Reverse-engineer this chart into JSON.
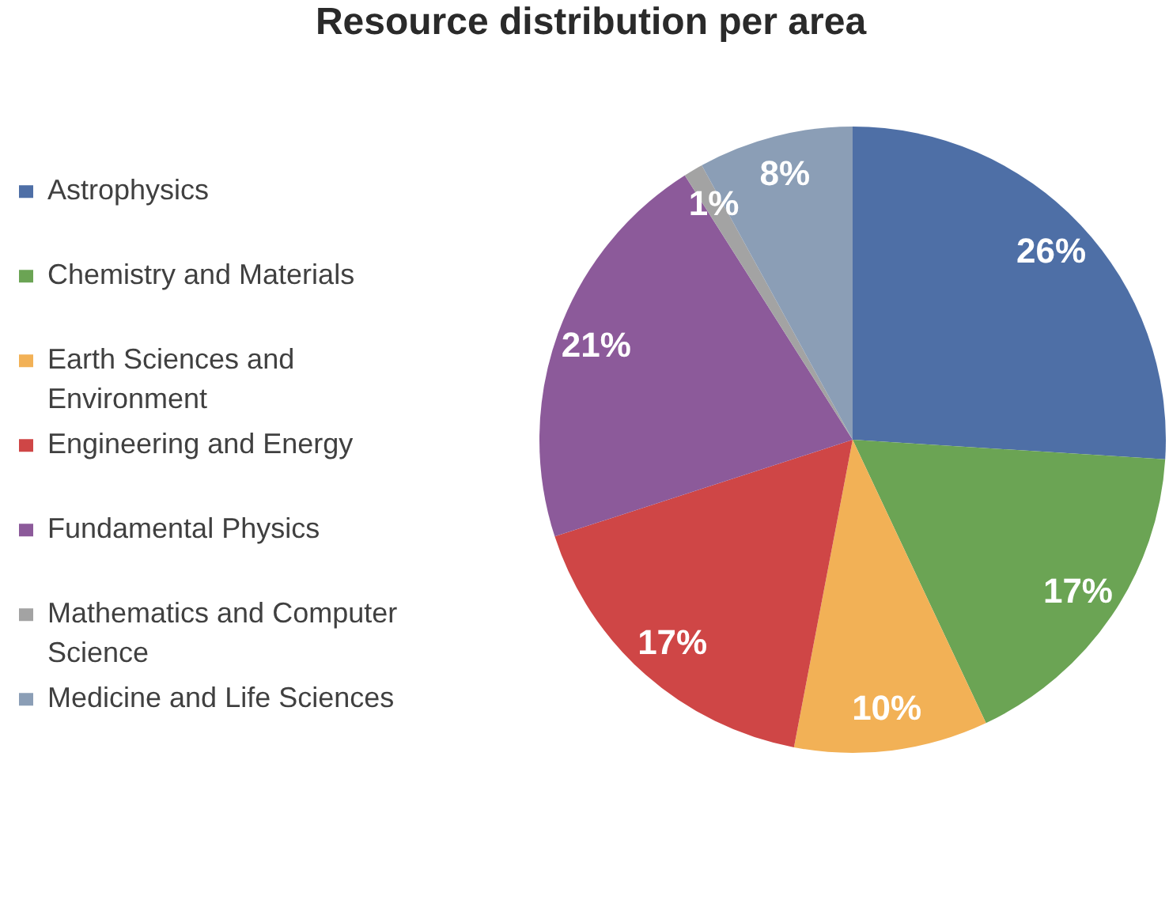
{
  "chart_data": {
    "type": "pie",
    "title": "Resource distribution per area",
    "categories": [
      "Astrophysics",
      "Chemistry and Materials",
      "Earth Sciences and Environment",
      "Engineering and Energy",
      "Fundamental Physics",
      "Mathematics and Computer Science",
      "Medicine and Life Sciences"
    ],
    "values": [
      26,
      17,
      10,
      17,
      21,
      1,
      8
    ],
    "colors": [
      "#4e6fa6",
      "#6ba454",
      "#f2b156",
      "#cf4646",
      "#8c5a9a",
      "#a3a3a3",
      "#8b9eb6"
    ],
    "value_labels": [
      "26%",
      "17%",
      "10%",
      "17%",
      "21%",
      "1%",
      "8%"
    ],
    "legend": "left"
  }
}
